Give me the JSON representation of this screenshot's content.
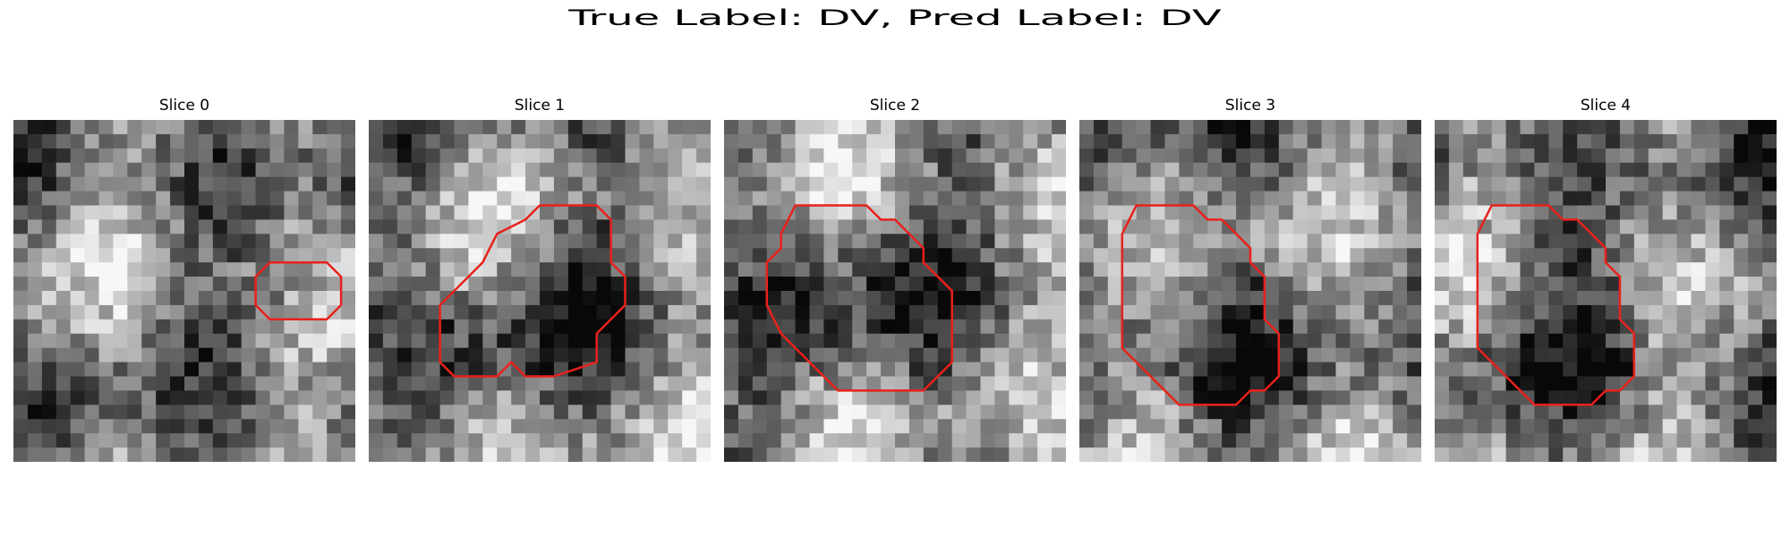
{
  "figure": {
    "title": "True Label: DV, Pred Label: DV"
  },
  "slices": [
    {
      "title": "Slice 0",
      "contour_color": "#e8211b",
      "seed": 11,
      "contour": [
        [
          18,
          10
        ],
        [
          22,
          10
        ],
        [
          23,
          11
        ],
        [
          23,
          13
        ],
        [
          22,
          14
        ],
        [
          18,
          14
        ],
        [
          17,
          13
        ],
        [
          17,
          11
        ]
      ]
    },
    {
      "title": "Slice 1",
      "contour_color": "#e8211b",
      "seed": 23,
      "contour": [
        [
          12,
          6
        ],
        [
          16,
          6
        ],
        [
          17,
          7
        ],
        [
          17,
          10
        ],
        [
          18,
          11
        ],
        [
          18,
          13
        ],
        [
          17,
          14
        ],
        [
          16,
          15
        ],
        [
          16,
          17
        ],
        [
          13,
          18
        ],
        [
          11,
          18
        ],
        [
          10,
          17
        ],
        [
          9,
          18
        ],
        [
          6,
          18
        ],
        [
          5,
          17
        ],
        [
          5,
          13
        ],
        [
          7,
          11
        ],
        [
          8,
          10
        ],
        [
          9,
          8
        ],
        [
          11,
          7
        ]
      ]
    },
    {
      "title": "Slice 2",
      "contour_color": "#e8211b",
      "seed": 37,
      "contour": [
        [
          5,
          6
        ],
        [
          10,
          6
        ],
        [
          11,
          7
        ],
        [
          12,
          7
        ],
        [
          13,
          8
        ],
        [
          14,
          9
        ],
        [
          14,
          10
        ],
        [
          15,
          11
        ],
        [
          16,
          12
        ],
        [
          16,
          13
        ],
        [
          16,
          15
        ],
        [
          16,
          17
        ],
        [
          15,
          18
        ],
        [
          14,
          19
        ],
        [
          8,
          19
        ],
        [
          7,
          18
        ],
        [
          6,
          17
        ],
        [
          5,
          16
        ],
        [
          4,
          15
        ],
        [
          3,
          13
        ],
        [
          3,
          11
        ],
        [
          3,
          10
        ],
        [
          4,
          9
        ],
        [
          4,
          8
        ]
      ]
    },
    {
      "title": "Slice 3",
      "contour_color": "#e8211b",
      "seed": 41,
      "contour": [
        [
          4,
          6
        ],
        [
          8,
          6
        ],
        [
          9,
          7
        ],
        [
          10,
          7
        ],
        [
          11,
          8
        ],
        [
          12,
          9
        ],
        [
          12,
          10
        ],
        [
          13,
          11
        ],
        [
          13,
          14
        ],
        [
          14,
          15
        ],
        [
          14,
          18
        ],
        [
          13,
          19
        ],
        [
          12,
          19
        ],
        [
          11,
          20
        ],
        [
          7,
          20
        ],
        [
          6,
          19
        ],
        [
          5,
          18
        ],
        [
          4,
          17
        ],
        [
          3,
          16
        ],
        [
          3,
          8
        ]
      ]
    },
    {
      "title": "Slice 4",
      "contour_color": "#e8211b",
      "seed": 43,
      "contour": [
        [
          4,
          6
        ],
        [
          8,
          6
        ],
        [
          9,
          7
        ],
        [
          10,
          7
        ],
        [
          11,
          8
        ],
        [
          12,
          9
        ],
        [
          12,
          10
        ],
        [
          13,
          11
        ],
        [
          13,
          14
        ],
        [
          14,
          15
        ],
        [
          14,
          18
        ],
        [
          13,
          19
        ],
        [
          12,
          19
        ],
        [
          11,
          20
        ],
        [
          7,
          20
        ],
        [
          6,
          19
        ],
        [
          5,
          18
        ],
        [
          4,
          17
        ],
        [
          3,
          16
        ],
        [
          3,
          8
        ]
      ]
    }
  ]
}
